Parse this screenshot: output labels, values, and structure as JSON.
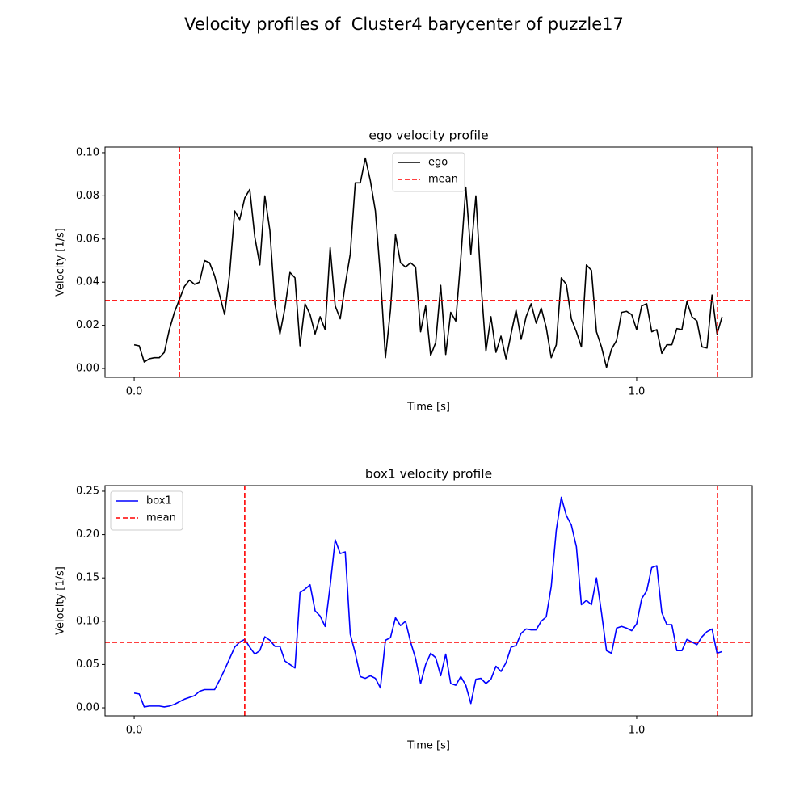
{
  "title": "Velocity profiles of  Cluster4 barycenter of puzzle17",
  "chart_data": [
    {
      "type": "line",
      "title": "ego velocity profile",
      "xlabel": "Time [s]",
      "ylabel": "Velocity [1/s]",
      "x": [
        0,
        0.01,
        0.02,
        0.03,
        0.04,
        0.05,
        0.06,
        0.07,
        0.08,
        0.09,
        0.1,
        0.11,
        0.12,
        0.13,
        0.14,
        0.15,
        0.16,
        0.17,
        0.18,
        0.19,
        0.2,
        0.21,
        0.22,
        0.23,
        0.24,
        0.25,
        0.26,
        0.27,
        0.28,
        0.29,
        0.3,
        0.31,
        0.32,
        0.33,
        0.34,
        0.35,
        0.36,
        0.37,
        0.38,
        0.39,
        0.4,
        0.41,
        0.42,
        0.43,
        0.44,
        0.45,
        0.46,
        0.47,
        0.48,
        0.49,
        0.5,
        0.51,
        0.52,
        0.53,
        0.54,
        0.55,
        0.56,
        0.57,
        0.58,
        0.59,
        0.6,
        0.61,
        0.62,
        0.63,
        0.64,
        0.65,
        0.66,
        0.67,
        0.68,
        0.69,
        0.7,
        0.71,
        0.72,
        0.73,
        0.74,
        0.75,
        0.76,
        0.77,
        0.78,
        0.79,
        0.8,
        0.81,
        0.82,
        0.83,
        0.84,
        0.85,
        0.86,
        0.87,
        0.88,
        0.89,
        0.9,
        0.91,
        0.92,
        0.93,
        0.94,
        0.95,
        0.96,
        0.97,
        0.98,
        0.99,
        1.0,
        1.01,
        1.02,
        1.03,
        1.04,
        1.05,
        1.06,
        1.07,
        1.08,
        1.09,
        1.1,
        1.11,
        1.12,
        1.13,
        1.14,
        1.15,
        1.16,
        1.17
      ],
      "series": [
        {
          "name": "ego",
          "color": "#000000",
          "values": [
            0.011,
            0.0105,
            0.003,
            0.0045,
            0.005,
            0.005,
            0.0075,
            0.018,
            0.026,
            0.032,
            0.038,
            0.041,
            0.039,
            0.04,
            0.05,
            0.049,
            0.043,
            0.034,
            0.025,
            0.044,
            0.073,
            0.069,
            0.079,
            0.083,
            0.061,
            0.048,
            0.08,
            0.064,
            0.03,
            0.016,
            0.028,
            0.0445,
            0.042,
            0.0105,
            0.03,
            0.025,
            0.016,
            0.024,
            0.018,
            0.056,
            0.029,
            0.023,
            0.039,
            0.053,
            0.086,
            0.086,
            0.0975,
            0.087,
            0.073,
            0.043,
            0.005,
            0.027,
            0.062,
            0.049,
            0.047,
            0.049,
            0.047,
            0.017,
            0.029,
            0.006,
            0.012,
            0.0385,
            0.0065,
            0.026,
            0.022,
            0.051,
            0.084,
            0.053,
            0.08,
            0.04,
            0.008,
            0.024,
            0.0075,
            0.015,
            0.0045,
            0.016,
            0.027,
            0.0135,
            0.024,
            0.03,
            0.021,
            0.028,
            0.019,
            0.005,
            0.011,
            0.042,
            0.039,
            0.023,
            0.017,
            0.01,
            0.048,
            0.0455,
            0.017,
            0.01,
            0.0005,
            0.009,
            0.013,
            0.026,
            0.0265,
            0.025,
            0.018,
            0.029,
            0.03,
            0.017,
            0.018,
            0.007,
            0.011,
            0.011,
            0.0185,
            0.018,
            0.031,
            0.024,
            0.022,
            0.01,
            0.0095,
            0.034,
            0.016,
            0.024
          ]
        }
      ],
      "mean": {
        "name": "mean",
        "color": "#ff0000",
        "value": 0.0315
      },
      "vlines": [
        0.09,
        1.161
      ],
      "xlim": [
        -0.058,
        1.23
      ],
      "ylim": [
        -0.0041,
        0.1026
      ],
      "xticks": [
        {
          "value": 0,
          "label": "0.0"
        },
        {
          "value": 1,
          "label": "1.0"
        }
      ],
      "yticks": [
        {
          "value": 0,
          "label": "0.00"
        },
        {
          "value": 0.02,
          "label": "0.02"
        },
        {
          "value": 0.04,
          "label": "0.04"
        },
        {
          "value": 0.06,
          "label": "0.06"
        },
        {
          "value": 0.08,
          "label": "0.08"
        },
        {
          "value": 0.1,
          "label": "0.10"
        }
      ],
      "legend": "upper center"
    },
    {
      "type": "line",
      "title": "box1 velocity profile",
      "xlabel": "Time [s]",
      "ylabel": "Velocity [1/s]",
      "x": [
        0,
        0.01,
        0.02,
        0.03,
        0.04,
        0.05,
        0.06,
        0.07,
        0.08,
        0.09,
        0.1,
        0.11,
        0.12,
        0.13,
        0.14,
        0.15,
        0.16,
        0.17,
        0.18,
        0.19,
        0.2,
        0.21,
        0.22,
        0.23,
        0.24,
        0.25,
        0.26,
        0.27,
        0.28,
        0.29,
        0.3,
        0.31,
        0.32,
        0.33,
        0.34,
        0.35,
        0.36,
        0.37,
        0.38,
        0.39,
        0.4,
        0.41,
        0.42,
        0.43,
        0.44,
        0.45,
        0.46,
        0.47,
        0.48,
        0.49,
        0.5,
        0.51,
        0.52,
        0.53,
        0.54,
        0.55,
        0.56,
        0.57,
        0.58,
        0.59,
        0.6,
        0.61,
        0.62,
        0.63,
        0.64,
        0.65,
        0.66,
        0.67,
        0.68,
        0.69,
        0.7,
        0.71,
        0.72,
        0.73,
        0.74,
        0.75,
        0.76,
        0.77,
        0.78,
        0.79,
        0.8,
        0.81,
        0.82,
        0.83,
        0.84,
        0.85,
        0.86,
        0.87,
        0.88,
        0.89,
        0.9,
        0.91,
        0.92,
        0.93,
        0.94,
        0.95,
        0.96,
        0.97,
        0.98,
        0.99,
        1.0,
        1.01,
        1.02,
        1.03,
        1.04,
        1.05,
        1.06,
        1.07,
        1.08,
        1.09,
        1.1,
        1.11,
        1.12,
        1.13,
        1.14,
        1.15,
        1.16,
        1.17
      ],
      "series": [
        {
          "name": "box1",
          "color": "#0000ff",
          "values": [
            0.017,
            0.016,
            0.001,
            0.002,
            0.002,
            0.002,
            0.001,
            0.002,
            0.004,
            0.007,
            0.01,
            0.012,
            0.014,
            0.019,
            0.021,
            0.021,
            0.021,
            0.032,
            0.044,
            0.057,
            0.07,
            0.076,
            0.079,
            0.07,
            0.062,
            0.066,
            0.082,
            0.078,
            0.071,
            0.071,
            0.054,
            0.05,
            0.046,
            0.133,
            0.137,
            0.142,
            0.112,
            0.106,
            0.094,
            0.141,
            0.194,
            0.178,
            0.18,
            0.085,
            0.063,
            0.036,
            0.034,
            0.037,
            0.034,
            0.023,
            0.078,
            0.081,
            0.104,
            0.095,
            0.1,
            0.076,
            0.057,
            0.028,
            0.05,
            0.063,
            0.058,
            0.037,
            0.062,
            0.028,
            0.026,
            0.036,
            0.026,
            0.005,
            0.033,
            0.034,
            0.028,
            0.033,
            0.048,
            0.042,
            0.052,
            0.07,
            0.072,
            0.086,
            0.091,
            0.09,
            0.09,
            0.1,
            0.105,
            0.14,
            0.205,
            0.243,
            0.222,
            0.211,
            0.186,
            0.119,
            0.124,
            0.119,
            0.15,
            0.11,
            0.066,
            0.063,
            0.092,
            0.094,
            0.092,
            0.089,
            0.097,
            0.126,
            0.135,
            0.162,
            0.164,
            0.11,
            0.096,
            0.096,
            0.066,
            0.066,
            0.079,
            0.076,
            0.073,
            0.082,
            0.088,
            0.091,
            0.063,
            0.065
          ]
        }
      ],
      "mean": {
        "name": "mean",
        "color": "#ff0000",
        "value": 0.0756
      },
      "vlines": [
        0.22,
        1.161
      ],
      "xlim": [
        -0.058,
        1.23
      ],
      "ylim": [
        -0.0093,
        0.2565
      ],
      "xticks": [
        {
          "value": 0,
          "label": "0.0"
        },
        {
          "value": 1,
          "label": "1.0"
        }
      ],
      "yticks": [
        {
          "value": 0,
          "label": "0.00"
        },
        {
          "value": 0.05,
          "label": "0.05"
        },
        {
          "value": 0.1,
          "label": "0.10"
        },
        {
          "value": 0.15,
          "label": "0.15"
        },
        {
          "value": 0.2,
          "label": "0.20"
        },
        {
          "value": 0.25,
          "label": "0.25"
        }
      ],
      "legend": "upper left"
    }
  ]
}
